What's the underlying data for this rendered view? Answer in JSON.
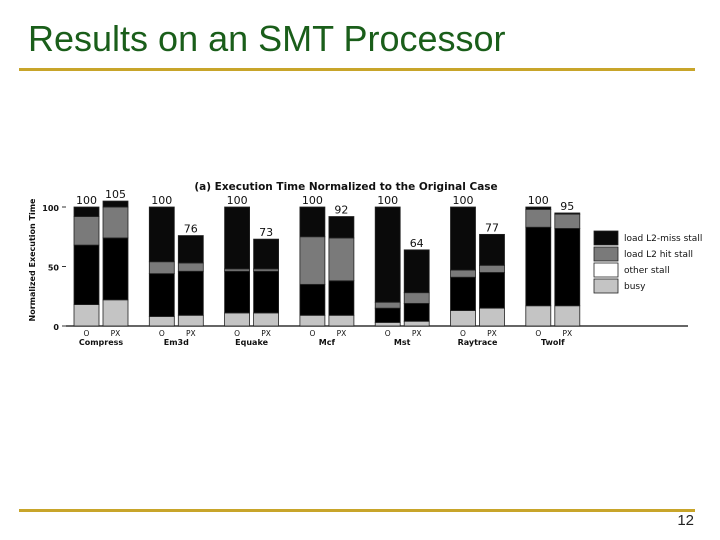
{
  "slide": {
    "title": "Results on an SMT Processor",
    "page_number": "12"
  },
  "colors": {
    "load_l2_miss_stall": "#0a0a0a",
    "load_l2_hit_stall": "#7a7a7a",
    "other_stall": "#ffffff",
    "busy": "#c4c4c4",
    "title_green": "#1a5e1a",
    "rule_gold": "#c8a52a"
  },
  "chart_data": {
    "type": "bar",
    "stacked": true,
    "title": "(a) Execution Time Normalized to the Original Case",
    "ylabel": "Normalized Execution Time",
    "ylim": [
      0,
      100
    ],
    "yticks": [
      "0",
      "50",
      "100"
    ],
    "groups": [
      "Compress",
      "Em3d",
      "Equake",
      "Mcf",
      "Mst",
      "Raytrace",
      "Twolf"
    ],
    "bar_labels": [
      "O",
      "PX"
    ],
    "legend_position": "right",
    "legend": [
      "load L2-miss stall",
      "load L2 hit stall",
      "other stall",
      "busy"
    ],
    "bars": [
      {
        "group": "Compress",
        "label": "O",
        "total": 100,
        "busy": 18,
        "other": 50,
        "hit": 24,
        "miss": 8
      },
      {
        "group": "Compress",
        "label": "PX",
        "total": 105,
        "busy": 22,
        "other": 52,
        "hit": 26,
        "miss": 5
      },
      {
        "group": "Em3d",
        "label": "O",
        "total": 100,
        "busy": 8,
        "other": 36,
        "hit": 10,
        "miss": 46
      },
      {
        "group": "Em3d",
        "label": "PX",
        "total": 76,
        "busy": 9,
        "other": 37,
        "hit": 7,
        "miss": 23
      },
      {
        "group": "Equake",
        "label": "O",
        "total": 100,
        "busy": 11,
        "other": 35,
        "hit": 2,
        "miss": 52
      },
      {
        "group": "Equake",
        "label": "PX",
        "total": 73,
        "busy": 11,
        "other": 35,
        "hit": 2,
        "miss": 25
      },
      {
        "group": "Mcf",
        "label": "O",
        "total": 100,
        "busy": 9,
        "other": 26,
        "hit": 40,
        "miss": 25
      },
      {
        "group": "Mcf",
        "label": "PX",
        "total": 92,
        "busy": 9,
        "other": 29,
        "hit": 36,
        "miss": 18
      },
      {
        "group": "Mst",
        "label": "O",
        "total": 100,
        "busy": 3,
        "other": 12,
        "hit": 5,
        "miss": 80
      },
      {
        "group": "Mst",
        "label": "PX",
        "total": 64,
        "busy": 4,
        "other": 15,
        "hit": 9,
        "miss": 36
      },
      {
        "group": "Raytrace",
        "label": "O",
        "total": 100,
        "busy": 13,
        "other": 28,
        "hit": 6,
        "miss": 53
      },
      {
        "group": "Raytrace",
        "label": "PX",
        "total": 77,
        "busy": 15,
        "other": 30,
        "hit": 6,
        "miss": 26
      },
      {
        "group": "Twolf",
        "label": "O",
        "total": 100,
        "busy": 17,
        "other": 66,
        "hit": 15,
        "miss": 2
      },
      {
        "group": "Twolf",
        "label": "PX",
        "total": 95,
        "busy": 17,
        "other": 65,
        "hit": 12,
        "miss": 1
      }
    ]
  }
}
